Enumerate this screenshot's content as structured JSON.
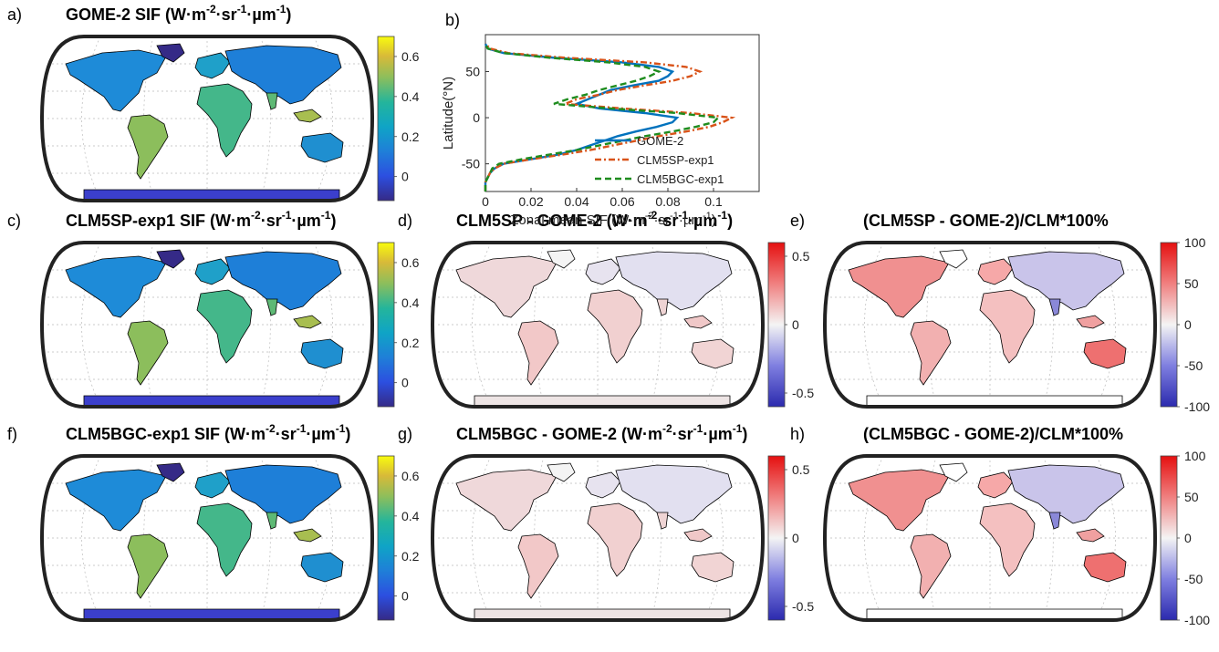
{
  "panels": [
    {
      "key": "a",
      "letter": "a)",
      "title_main": "GOME-2 SIF (W·m",
      "sup1": "-2",
      "mid1": "·sr",
      "sup2": "-1",
      "mid2": "·µm",
      "sup3": "-1",
      "end": ")",
      "kind": "sif",
      "ticks": [
        "0.6",
        "0.4",
        "0.2",
        "0"
      ]
    },
    {
      "key": "c",
      "letter": "c)",
      "title_main": "CLM5SP-exp1 SIF (W·m",
      "sup1": "-2",
      "mid1": "·sr",
      "sup2": "-1",
      "mid2": "·µm",
      "sup3": "-1",
      "end": ")",
      "kind": "sif",
      "ticks": [
        "0.6",
        "0.4",
        "0.2",
        "0"
      ]
    },
    {
      "key": "d",
      "letter": "d)",
      "title_main": "CLM5SP - GOME-2 (W·m",
      "sup1": "-2",
      "mid1": "·sr",
      "sup2": "-1",
      "mid2": "·µm",
      "sup3": "-1",
      "end": ")",
      "kind": "diff",
      "ticks": [
        "0.5",
        "0",
        "-0.5"
      ]
    },
    {
      "key": "e",
      "letter": "e)",
      "title_main": "(CLM5SP - GOME-2)/CLM*100%",
      "sup1": "",
      "mid1": "",
      "sup2": "",
      "mid2": "",
      "sup3": "",
      "end": "",
      "kind": "pct",
      "ticks": [
        "100",
        "50",
        "0",
        "-50",
        "-100"
      ]
    },
    {
      "key": "f",
      "letter": "f)",
      "title_main": "CLM5BGC-exp1 SIF (W·m",
      "sup1": "-2",
      "mid1": "·sr",
      "sup2": "-1",
      "mid2": "·µm",
      "sup3": "-1",
      "end": ")",
      "kind": "sif",
      "ticks": [
        "0.6",
        "0.4",
        "0.2",
        "0"
      ]
    },
    {
      "key": "g",
      "letter": "g)",
      "title_main": "CLM5BGC - GOME-2 (W·m",
      "sup1": "-2",
      "mid1": "·sr",
      "sup2": "-1",
      "mid2": "·µm",
      "sup3": "-1",
      "end": ")",
      "kind": "diff",
      "ticks": [
        "0.5",
        "0",
        "-0.5"
      ]
    },
    {
      "key": "h",
      "letter": "h)",
      "title_main": "(CLM5BGC - GOME-2)/CLM*100%",
      "sup1": "",
      "mid1": "",
      "sup2": "",
      "mid2": "",
      "sup3": "",
      "end": "",
      "kind": "pct",
      "ticks": [
        "100",
        "50",
        "0",
        "-50",
        "-100"
      ]
    }
  ],
  "line_panel": {
    "letter": "b)",
    "ylabel": "Latitude(°N)",
    "xlabel_main": "Zonal mean SIF (W·m",
    "xlabel_sup1": "-2",
    "xlabel_mid1": "·sr",
    "xlabel_sup2": "-1",
    "xlabel_mid2": "·µm",
    "xlabel_sup3": "-1",
    "xlabel_end": ")"
  },
  "colors": {
    "gome": "#0072BD",
    "sp": "#D95319",
    "bgc": "#1E8C1E",
    "ocean": "#ffffff",
    "frame": "#222222"
  },
  "chart_data": {
    "type": "line",
    "xlim": [
      0,
      0.12
    ],
    "ylim": [
      -80,
      90
    ],
    "xticks": [
      0,
      0.02,
      0.04,
      0.06,
      0.08,
      0.1
    ],
    "xticklabels": [
      "0",
      "0.02",
      "0.04",
      "0.06",
      "0.08",
      "0.1"
    ],
    "yticks": [
      -50,
      0,
      50
    ],
    "yticklabels": [
      "-50",
      "0",
      "50"
    ],
    "legend_position": "bottom-right",
    "series": [
      {
        "name": "GOME-2",
        "style": "solid",
        "lat": [
          -80,
          -70,
          -60,
          -55,
          -50,
          -45,
          -40,
          -35,
          -30,
          -25,
          -20,
          -15,
          -10,
          -5,
          0,
          5,
          10,
          15,
          20,
          25,
          30,
          35,
          40,
          45,
          50,
          55,
          60,
          65,
          70,
          75,
          80
        ],
        "sif": [
          0,
          0,
          0.002,
          0.004,
          0.008,
          0.02,
          0.032,
          0.04,
          0.046,
          0.052,
          0.058,
          0.066,
          0.075,
          0.082,
          0.084,
          0.07,
          0.05,
          0.04,
          0.045,
          0.05,
          0.055,
          0.065,
          0.076,
          0.08,
          0.082,
          0.076,
          0.06,
          0.03,
          0.008,
          0.001,
          0
        ]
      },
      {
        "name": "CLM5SP-exp1",
        "style": "dashdot",
        "lat": [
          -80,
          -70,
          -60,
          -55,
          -50,
          -45,
          -40,
          -35,
          -30,
          -25,
          -20,
          -15,
          -10,
          -5,
          0,
          5,
          10,
          15,
          20,
          25,
          30,
          35,
          40,
          45,
          50,
          55,
          60,
          65,
          70,
          75,
          80
        ],
        "sif": [
          0,
          0,
          0.002,
          0.004,
          0.008,
          0.02,
          0.034,
          0.046,
          0.056,
          0.066,
          0.076,
          0.088,
          0.098,
          0.104,
          0.108,
          0.09,
          0.06,
          0.035,
          0.04,
          0.05,
          0.058,
          0.07,
          0.082,
          0.09,
          0.094,
          0.088,
          0.07,
          0.035,
          0.01,
          0.002,
          0
        ]
      },
      {
        "name": "CLM5BGC-exp1",
        "style": "dashed",
        "lat": [
          -80,
          -70,
          -60,
          -55,
          -50,
          -45,
          -40,
          -35,
          -30,
          -25,
          -20,
          -15,
          -10,
          -5,
          0,
          5,
          10,
          15,
          20,
          25,
          30,
          35,
          40,
          45,
          50,
          55,
          60,
          65,
          70,
          75,
          80
        ],
        "sif": [
          0,
          0,
          0.002,
          0.003,
          0.006,
          0.016,
          0.028,
          0.04,
          0.05,
          0.06,
          0.07,
          0.082,
          0.092,
          0.1,
          0.102,
          0.084,
          0.055,
          0.03,
          0.036,
          0.044,
          0.05,
          0.058,
          0.066,
          0.072,
          0.076,
          0.07,
          0.054,
          0.028,
          0.008,
          0.001,
          0
        ]
      }
    ]
  }
}
